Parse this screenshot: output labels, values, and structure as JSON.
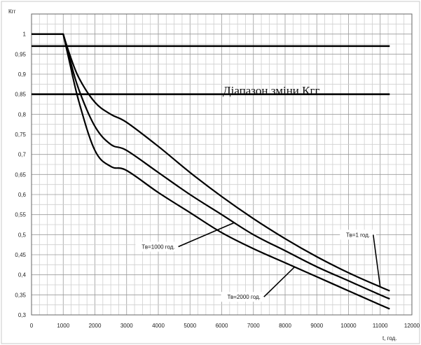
{
  "chart_data": {
    "type": "line",
    "ylabel": "Кгг",
    "xlabel": "t, год.",
    "xlim": [
      0,
      12000
    ],
    "ylim": [
      0.3,
      1.05
    ],
    "xticks": [
      0,
      1000,
      2000,
      3000,
      4000,
      5000,
      6000,
      7000,
      8000,
      9000,
      10000,
      11000,
      12000
    ],
    "yticks": [
      0.3,
      0.35,
      0.4,
      0.45,
      0.5,
      0.55,
      0.6,
      0.65,
      0.7,
      0.75,
      0.8,
      0.85,
      0.9,
      0.95,
      1
    ],
    "ytick_labels": [
      "0,3",
      "0,35",
      "0,4",
      "0,45",
      "0,5",
      "0,55",
      "0,6",
      "0,65",
      "0,7",
      "0,75",
      "0,8",
      "0,85",
      "0,9",
      "0,95",
      "1"
    ],
    "grid": true,
    "bounds": {
      "upper": 0.97,
      "lower": 0.85
    },
    "range_label": "Діапазон зміни Кгг",
    "series": [
      {
        "name": "Тв=1 год.",
        "x": [
          0,
          1000,
          1200,
          1500,
          2000,
          2500,
          3000,
          4000,
          5000,
          6000,
          7000,
          8000,
          9000,
          10000,
          11000,
          11300
        ],
        "y": [
          1,
          1,
          0.95,
          0.89,
          0.83,
          0.8,
          0.78,
          0.72,
          0.655,
          0.595,
          0.54,
          0.49,
          0.445,
          0.405,
          0.37,
          0.36
        ]
      },
      {
        "name": "Тв=1000 год.",
        "x": [
          0,
          1000,
          1200,
          1500,
          2000,
          2500,
          3000,
          4000,
          5000,
          6000,
          7000,
          8000,
          9000,
          10000,
          11000,
          11300
        ],
        "y": [
          1,
          1,
          0.94,
          0.86,
          0.77,
          0.725,
          0.71,
          0.655,
          0.6,
          0.55,
          0.5,
          0.46,
          0.42,
          0.385,
          0.35,
          0.34
        ]
      },
      {
        "name": "Тв=2000 год.",
        "x": [
          0,
          1000,
          1200,
          1500,
          2000,
          2500,
          3000,
          4000,
          5000,
          6000,
          7000,
          8000,
          9000,
          10000,
          11000,
          11300
        ],
        "y": [
          1,
          1,
          0.93,
          0.83,
          0.71,
          0.67,
          0.66,
          0.605,
          0.555,
          0.505,
          0.465,
          0.43,
          0.395,
          0.36,
          0.325,
          0.315
        ]
      }
    ],
    "annotations": [
      {
        "text": "Тв=1 год.",
        "series": 0,
        "at_x": 11000,
        "label_x": 10300,
        "label_y": 0.5
      },
      {
        "text": "Тв=1000 год.",
        "series": 1,
        "at_x": 6400,
        "label_x": 4000,
        "label_y": 0.47
      },
      {
        "text": "Тв=2000 год.",
        "series": 2,
        "at_x": 8300,
        "label_x": 6700,
        "label_y": 0.345
      }
    ]
  }
}
